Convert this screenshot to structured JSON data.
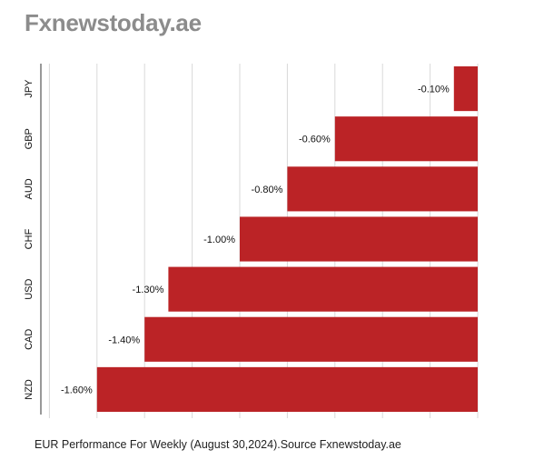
{
  "header": {
    "site_title": "Fxnewstoday.ae"
  },
  "footer": {
    "caption": "EUR  Performance For Weekly (August 30,2024).Source Fxnewstoday.ae"
  },
  "colors": {
    "bar": "#bb2326",
    "grid": "#d9d9d9",
    "axis": "#333333",
    "text": "#111111"
  },
  "chart_data": {
    "type": "bar",
    "orientation": "horizontal",
    "categories": [
      "JPY",
      "GBP",
      "AUD",
      "CHF",
      "USD",
      "CAD",
      "NZD"
    ],
    "values": [
      -0.1,
      -0.6,
      -0.8,
      -1.0,
      -1.3,
      -1.4,
      -1.6
    ],
    "data_labels": [
      "-0.10%",
      "-0.60%",
      "-0.80%",
      "-1.00%",
      "-1.30%",
      "-1.40%",
      "-1.60%"
    ],
    "title": "",
    "xlabel": "",
    "ylabel": "",
    "xlim": [
      -1.8,
      0
    ],
    "grid": true
  }
}
